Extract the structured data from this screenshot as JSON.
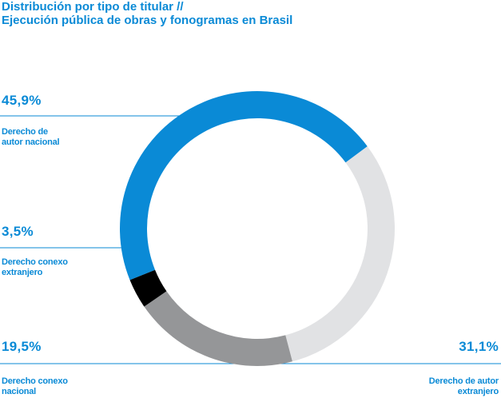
{
  "title": {
    "line1": "Distribución por tipo de titular //",
    "line2": "Ejecución pública de obras y fonogramas en Brasil"
  },
  "colors": {
    "text": "#0a8ad6",
    "leader_line": "#0a8ad6"
  },
  "chart_data": {
    "type": "pie",
    "variant": "donut",
    "title": "Distribución por tipo de titular // Ejecución pública de obras y fonogramas en Brasil",
    "slices": [
      {
        "name": "Derecho de autor nacional",
        "value": 45.9,
        "value_label": "45,9%",
        "label_lines": [
          "Derecho de",
          "autor nacional"
        ],
        "color": "#0a8ad6"
      },
      {
        "name": "Derecho de autor extranjero",
        "value": 31.1,
        "value_label": "31,1%",
        "label_lines": [
          "Derecho de autor",
          "extranjero"
        ],
        "color": "#e1e2e4"
      },
      {
        "name": "Derecho conexo nacional",
        "value": 19.5,
        "value_label": "19,5%",
        "label_lines": [
          "Derecho conexo",
          "nacional"
        ],
        "color": "#959698"
      },
      {
        "name": "Derecho conexo extranjero",
        "value": 3.5,
        "value_label": "3,5%",
        "label_lines": [
          "Derecho conexo",
          "extranjero"
        ],
        "color": "#000000"
      }
    ]
  }
}
